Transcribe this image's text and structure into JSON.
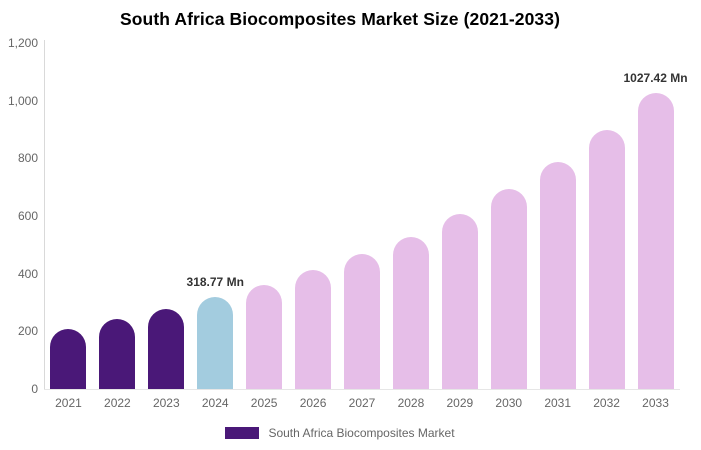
{
  "chart_data": {
    "type": "bar",
    "title": "South Africa Biocomposites Market Size (2021-2033)",
    "xlabel": "",
    "ylabel": "",
    "unit": "Mn",
    "categories": [
      "2021",
      "2022",
      "2023",
      "2024",
      "2025",
      "2026",
      "2027",
      "2028",
      "2029",
      "2030",
      "2031",
      "2032",
      "2033"
    ],
    "series": [
      {
        "name": "South Africa Biocomposites Market",
        "values": [
          207,
          242,
          277,
          318.77,
          360,
          413,
          468,
          527,
          607,
          692,
          788,
          898,
          1027.42
        ]
      }
    ],
    "ylim": [
      0,
      1200
    ],
    "y_ticks": [
      {
        "value": 0,
        "label": "0"
      },
      {
        "value": 200,
        "label": "200"
      },
      {
        "value": 400,
        "label": "400"
      },
      {
        "value": 600,
        "label": "600"
      },
      {
        "value": 800,
        "label": "800"
      },
      {
        "value": 1000,
        "label": "1,000"
      },
      {
        "value": 1200,
        "label": "1,200"
      }
    ],
    "bar_colors": [
      "#4A1878",
      "#4A1878",
      "#4A1878",
      "#A3CCDF",
      "#E6BEE8",
      "#E6BEE8",
      "#E6BEE8",
      "#E6BEE8",
      "#E6BEE8",
      "#E6BEE8",
      "#E6BEE8",
      "#E6BEE8",
      "#E6BEE8"
    ],
    "annotations": [
      {
        "category": "2024",
        "text": "318.77 Mn"
      },
      {
        "category": "2033",
        "text": "1027.42 Mn"
      }
    ],
    "grid": "off",
    "legend_position": "bottom"
  },
  "legend": {
    "label": "South Africa Biocomposites Market",
    "swatch_color": "#4A1878"
  },
  "colors": {
    "past_bars": "#4A1878",
    "current_bar": "#A3CCDF",
    "forecast_bars": "#E6BEE8",
    "axis_line": "#D9D9D9",
    "tick_text": "#666666",
    "annotation_text": "#333333"
  }
}
